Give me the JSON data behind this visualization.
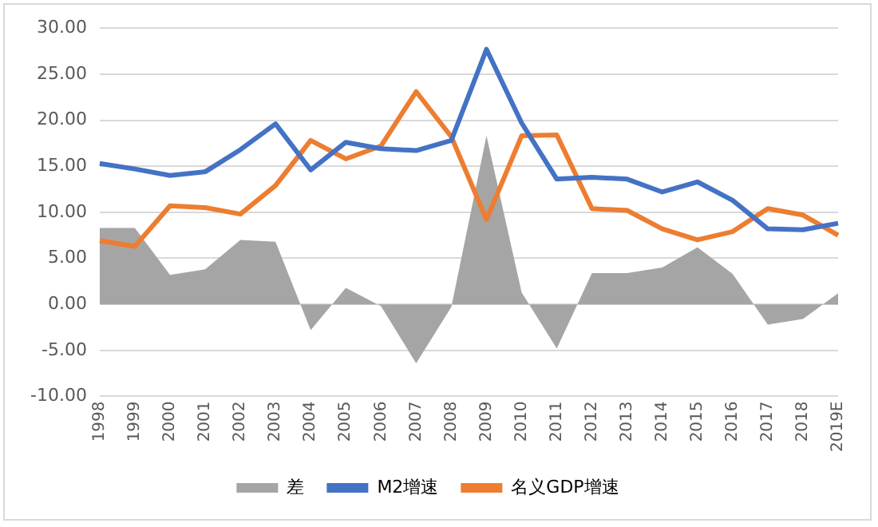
{
  "chart_data": {
    "type": "line",
    "categories": [
      "1998",
      "1999",
      "2000",
      "2001",
      "2002",
      "2003",
      "2004",
      "2005",
      "2006",
      "2007",
      "2008",
      "2009",
      "2010",
      "2011",
      "2012",
      "2013",
      "2014",
      "2015",
      "2016",
      "2017",
      "2018",
      "2019E"
    ],
    "series": [
      {
        "name": "差",
        "type": "area",
        "color": "#a5a5a5",
        "values": [
          8.3,
          8.3,
          3.2,
          3.8,
          7.0,
          6.8,
          -2.8,
          1.8,
          -0.2,
          -6.4,
          -0.3,
          18.3,
          1.3,
          -4.8,
          3.4,
          3.4,
          4.0,
          6.2,
          3.3,
          -2.2,
          -1.6,
          1.2
        ]
      },
      {
        "name": "M2增速",
        "color": "#4472c4",
        "values": [
          15.3,
          14.7,
          14.0,
          14.4,
          16.8,
          19.6,
          14.6,
          17.6,
          16.9,
          16.7,
          17.8,
          27.7,
          19.7,
          13.6,
          13.8,
          13.6,
          12.2,
          13.3,
          11.3,
          8.2,
          8.1,
          8.8
        ]
      },
      {
        "name": "名义GDP增速",
        "color": "#ed7d31",
        "values": [
          6.9,
          6.3,
          10.7,
          10.5,
          9.8,
          12.9,
          17.8,
          15.8,
          17.2,
          23.1,
          18.2,
          9.2,
          18.3,
          18.4,
          10.4,
          10.2,
          8.2,
          7.0,
          7.9,
          10.4,
          9.7,
          7.5
        ]
      }
    ],
    "ylim": [
      -10,
      30
    ],
    "yticks": [
      {
        "value": -10,
        "label": "-10.00"
      },
      {
        "value": -5,
        "label": "-5.00"
      },
      {
        "value": 0,
        "label": "0.00"
      },
      {
        "value": 5,
        "label": "5.00"
      },
      {
        "value": 10,
        "label": "10.00"
      },
      {
        "value": 15,
        "label": "15.00"
      },
      {
        "value": 20,
        "label": "20.00"
      },
      {
        "value": 25,
        "label": "25.00"
      },
      {
        "value": 30,
        "label": "30.00"
      }
    ],
    "grid": "y",
    "legend": "bottom",
    "marker": "none",
    "line_style": "solid"
  }
}
